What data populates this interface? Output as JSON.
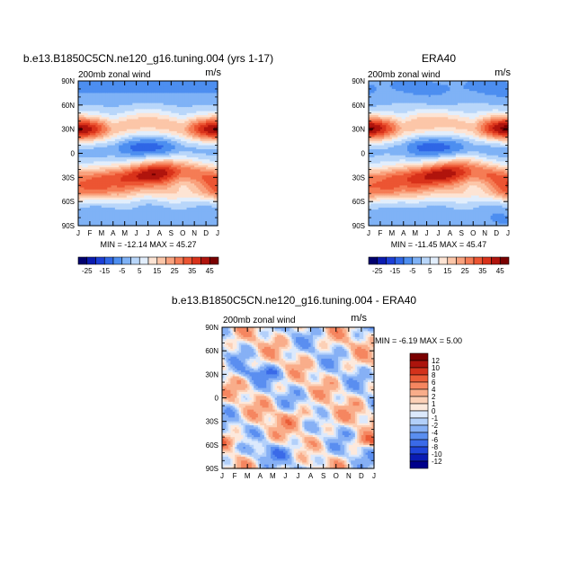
{
  "panels": [
    {
      "title": "b.e13.B1850C5CN.ne120_g16.tuning.004 (yrs 1-17)",
      "left_label": "200mb zonal wind",
      "right_label": "m/s",
      "stats": "MIN = -12.14  MAX =  45.27"
    },
    {
      "title": "ERA40",
      "left_label": "200mb zonal wind",
      "right_label": "m/s",
      "stats": "MIN = -11.45  MAX =  45.47"
    },
    {
      "title": "b.e13.B1850C5CN.ne120_g16.tuning.004 - ERA40",
      "left_label": "200mb zonal wind",
      "right_label": "m/s",
      "stats": "MIN =  -6.19  MAX =   5.00"
    }
  ],
  "chart_data": [
    {
      "type": "heatmap",
      "title": "b.e13.B1850C5CN.ne120_g16.tuning.004 (yrs 1-17)",
      "x_ticks": [
        "J",
        "F",
        "M",
        "A",
        "M",
        "J",
        "J",
        "A",
        "S",
        "O",
        "N",
        "D",
        "J"
      ],
      "y_ticks": [
        "90N",
        "60N",
        "30N",
        "0",
        "30S",
        "60S",
        "90S"
      ],
      "ylim": [
        -90,
        90
      ],
      "colorbar": {
        "levels": [
          -25,
          -20,
          -15,
          -10,
          -5,
          0,
          5,
          10,
          15,
          20,
          25,
          30,
          35,
          40,
          45
        ],
        "tick_labels": [
          "-25",
          "-15",
          "-5",
          "5",
          "15",
          "25",
          "35",
          "45"
        ],
        "colors": [
          "#00006e",
          "#0a1bb0",
          "#1c3fd6",
          "#2f66e6",
          "#4d8ef0",
          "#7fb2f6",
          "#b8d6fa",
          "#e2eefc",
          "#fde4d4",
          "#fcc6a8",
          "#f9a27e",
          "#f57c55",
          "#ec5532",
          "#d9321a",
          "#b0140d",
          "#7a0000"
        ]
      },
      "field": "full_a"
    },
    {
      "type": "heatmap",
      "title": "ERA40",
      "x_ticks": [
        "J",
        "F",
        "M",
        "A",
        "M",
        "J",
        "J",
        "A",
        "S",
        "O",
        "N",
        "D",
        "J"
      ],
      "y_ticks": [
        "90N",
        "60N",
        "30N",
        "0",
        "30S",
        "60S",
        "90S"
      ],
      "ylim": [
        -90,
        90
      ],
      "colorbar": {
        "levels": [
          -25,
          -20,
          -15,
          -10,
          -5,
          0,
          5,
          10,
          15,
          20,
          25,
          30,
          35,
          40,
          45
        ],
        "tick_labels": [
          "-25",
          "-15",
          "-5",
          "5",
          "15",
          "25",
          "35",
          "45"
        ],
        "colors": [
          "#00006e",
          "#0a1bb0",
          "#1c3fd6",
          "#2f66e6",
          "#4d8ef0",
          "#7fb2f6",
          "#b8d6fa",
          "#e2eefc",
          "#fde4d4",
          "#fcc6a8",
          "#f9a27e",
          "#f57c55",
          "#ec5532",
          "#d9321a",
          "#b0140d",
          "#7a0000"
        ]
      },
      "field": "full_b"
    },
    {
      "type": "heatmap",
      "title": "b.e13.B1850C5CN.ne120_g16.tuning.004 - ERA40",
      "x_ticks": [
        "J",
        "F",
        "M",
        "A",
        "M",
        "J",
        "J",
        "A",
        "S",
        "O",
        "N",
        "D",
        "J"
      ],
      "y_ticks": [
        "90N",
        "60N",
        "30N",
        "0",
        "30S",
        "60S",
        "90S"
      ],
      "ylim": [
        -90,
        90
      ],
      "colorbar": {
        "levels": [
          -12,
          -10,
          -8,
          -6,
          -4,
          -2,
          -1,
          0,
          1,
          2,
          4,
          6,
          8,
          10,
          12
        ],
        "tick_labels": [
          "-12",
          "-10",
          "-8",
          "-6",
          "-4",
          "-2",
          "-1",
          "0",
          "1",
          "2",
          "4",
          "6",
          "8",
          "10",
          "12"
        ],
        "colors": [
          "#00008b",
          "#0a1cb4",
          "#1f45d9",
          "#3a6ae8",
          "#5a8ef0",
          "#86b0f5",
          "#b3d0fa",
          "#dce9fc",
          "#fde9dc",
          "#fcd0b6",
          "#f9ad8a",
          "#f58660",
          "#ea5c37",
          "#d3321b",
          "#ac140c",
          "#7a0000"
        ]
      },
      "field": "diff"
    }
  ]
}
